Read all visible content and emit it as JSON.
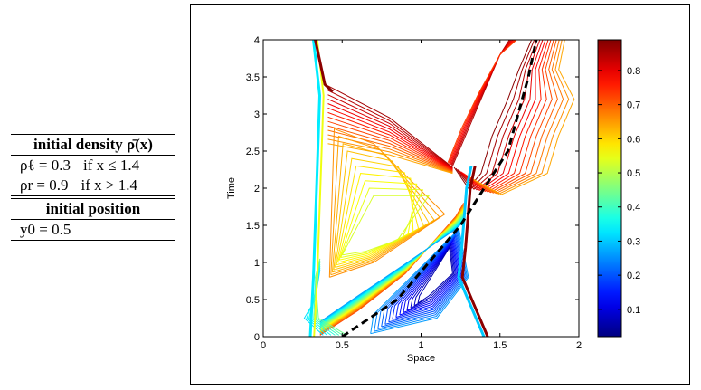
{
  "table": {
    "header_density": "initial density ρ̄(x)",
    "rows_density": [
      {
        "expr": "ρℓ = 0.3",
        "cond": "if x ≤ 1.4"
      },
      {
        "expr": "ρr = 0.9",
        "cond": "if x > 1.4"
      }
    ],
    "header_position": "initial position",
    "rows_position": [
      {
        "expr": "y0 = 0.5"
      }
    ]
  },
  "chart_data": {
    "type": "contour",
    "xlabel": "Space",
    "ylabel": "Time",
    "xlim": [
      0,
      2
    ],
    "ylim": [
      0,
      4
    ],
    "x_ticks": [
      "0",
      "0.5",
      "1",
      "1.5",
      "2"
    ],
    "y_ticks": [
      "0",
      "0.5",
      "1",
      "1.5",
      "2",
      "2.5",
      "3",
      "3.5",
      "4"
    ],
    "colorbar": {
      "range": [
        0.02,
        0.89
      ],
      "ticks": [
        "0.1",
        "0.2",
        "0.3",
        "0.4",
        "0.5",
        "0.6",
        "0.7",
        "0.8"
      ],
      "colormap": "jet"
    },
    "trajectory": {
      "style": "dashed",
      "color": "#000000",
      "points": [
        [
          0.5,
          0.0
        ],
        [
          0.85,
          0.5
        ],
        [
          1.25,
          1.5
        ],
        [
          1.55,
          2.5
        ],
        [
          1.68,
          3.5
        ],
        [
          1.73,
          4.0
        ]
      ]
    },
    "front_left": {
      "points": [
        [
          0.31,
          0.0
        ],
        [
          0.33,
          0.8
        ],
        [
          0.35,
          2.0
        ],
        [
          0.37,
          3.25
        ],
        [
          0.33,
          4.0
        ]
      ]
    },
    "front_right": {
      "points": [
        [
          1.41,
          0.0
        ],
        [
          1.25,
          0.8
        ],
        [
          1.27,
          1.2
        ],
        [
          1.3,
          2.0
        ],
        [
          1.33,
          2.3
        ]
      ]
    }
  }
}
